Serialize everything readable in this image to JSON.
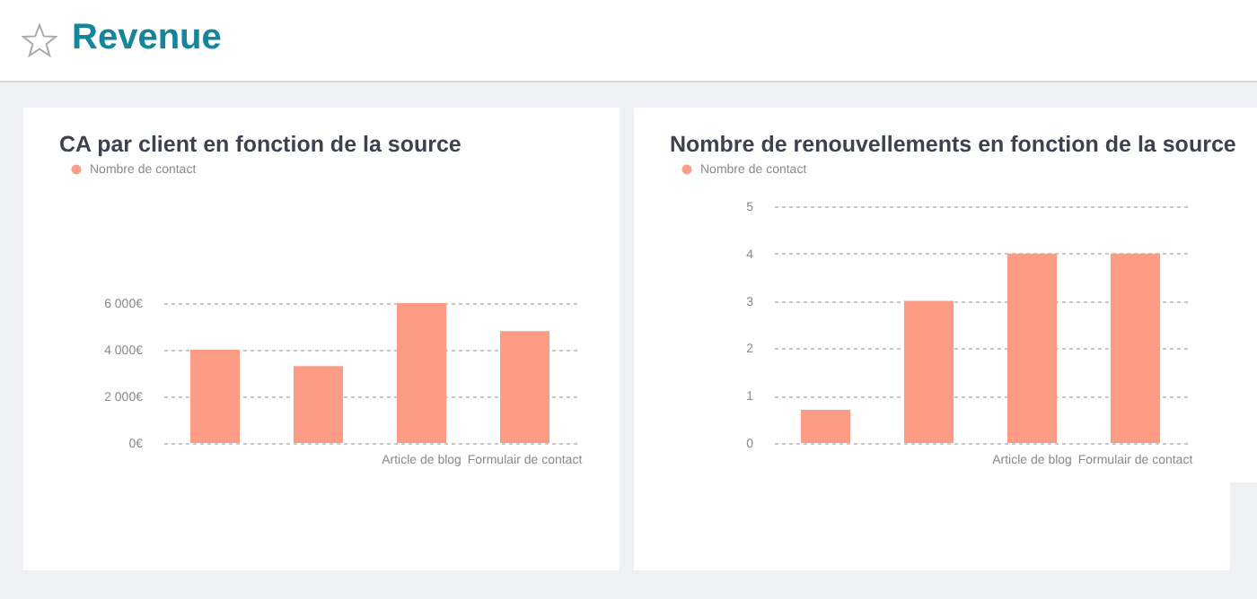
{
  "chart_data": [
    {
      "type": "other",
      "title": "Revenue"
    },
    {
      "type": "bar",
      "title": "CA par client en fonction de la source",
      "categories": [
        null,
        null,
        "Article de blog",
        "Formulair de contact"
      ],
      "series": [
        {
          "name": "Nombre de contact",
          "color": "#fd9c85",
          "values": [
            4000,
            3300,
            6000,
            4800
          ]
        }
      ],
      "ylim": [
        0,
        6000
      ],
      "yticks": [
        {
          "value": 0,
          "label": "0€"
        },
        {
          "value": 2000,
          "label": "2 000€"
        },
        {
          "value": 4000,
          "label": "4 000€"
        },
        {
          "value": 6000,
          "label": "6 000€"
        }
      ],
      "grid": "y",
      "legend": "top left"
    },
    {
      "type": "bar",
      "title": "Nombre de renouvellements en fonction de la source",
      "categories": [
        null,
        null,
        "Article de blog",
        "Formulair de contact"
      ],
      "series": [
        {
          "name": "Nombre de contact",
          "color": "#fd9c85",
          "values": [
            0.7,
            3,
            4,
            4
          ]
        }
      ],
      "ylim": [
        0,
        5
      ],
      "yticks": [
        0,
        1,
        2,
        3,
        4,
        5
      ],
      "grid": "y",
      "legend": "top left"
    }
  ]
}
